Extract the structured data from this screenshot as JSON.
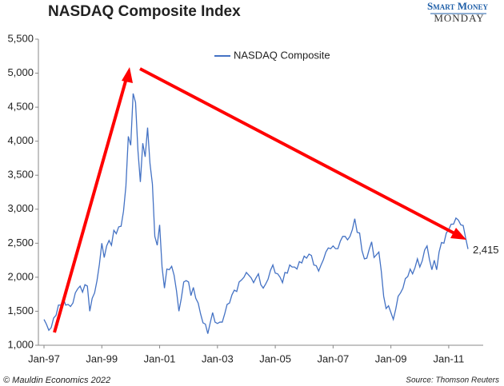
{
  "chart_data": {
    "type": "line",
    "title": "NASDAQ Composite Index",
    "brand": [
      "Smart Money",
      "MONDAY"
    ],
    "footer_left": "© Mauldin Economics 2022",
    "footer_right": "Source: Thomson Reuters",
    "annotation": "2,415",
    "categories": [
      "Jan-97",
      null,
      null,
      null,
      null,
      null,
      null,
      null,
      null,
      null,
      null,
      null,
      null,
      null,
      null,
      null,
      null,
      null,
      null,
      null,
      null,
      null,
      null,
      null,
      "Jan-99",
      null,
      null,
      null,
      null,
      null,
      null,
      null,
      null,
      null,
      null,
      null,
      null,
      null,
      null,
      null,
      null,
      null,
      null,
      null,
      null,
      null,
      null,
      null,
      "Jan-01",
      null,
      null,
      null,
      null,
      null,
      null,
      null,
      null,
      null,
      null,
      null,
      null,
      null,
      null,
      null,
      null,
      null,
      null,
      null,
      null,
      null,
      null,
      null,
      "Jan-03",
      null,
      null,
      null,
      null,
      null,
      null,
      null,
      null,
      null,
      null,
      null,
      null,
      null,
      null,
      null,
      null,
      null,
      null,
      null,
      null,
      null,
      null,
      null,
      "Jan-05",
      null,
      null,
      null,
      null,
      null,
      null,
      null,
      null,
      null,
      null,
      null,
      null,
      null,
      null,
      null,
      null,
      null,
      null,
      null,
      null,
      null,
      null,
      null,
      "Jan-07",
      null,
      null,
      null,
      null,
      null,
      null,
      null,
      null,
      null,
      null,
      null,
      null,
      null,
      null,
      null,
      null,
      null,
      null,
      null,
      null,
      null,
      null,
      null,
      "Jan-09",
      null,
      null,
      null,
      null,
      null,
      null,
      null,
      null,
      null,
      null,
      null,
      null,
      null,
      null,
      null,
      null,
      null,
      null,
      null,
      null,
      null,
      null,
      null,
      "Jan-11",
      null,
      null,
      null,
      null,
      null,
      null,
      null,
      null
    ],
    "series": [
      {
        "name": "NASDAQ Composite",
        "color": "#4472c4",
        "values": [
          1380,
          1310,
          1220,
          1260,
          1400,
          1440,
          1590,
          1590,
          1690,
          1590,
          1600,
          1570,
          1620,
          1770,
          1830,
          1870,
          1780,
          1890,
          1870,
          1500,
          1690,
          1770,
          1950,
          2190,
          2500,
          2290,
          2460,
          2540,
          2470,
          2690,
          2640,
          2740,
          2750,
          2970,
          3340,
          4070,
          3940,
          4700,
          4570,
          3860,
          3400,
          3970,
          3770,
          4200,
          3670,
          3370,
          2600,
          2470,
          2770,
          2150,
          1840,
          2120,
          2110,
          2160,
          2030,
          1800,
          1500,
          1690,
          1930,
          1950,
          1930,
          1730,
          1850,
          1690,
          1620,
          1460,
          1330,
          1310,
          1170,
          1330,
          1480,
          1340,
          1320,
          1340,
          1340,
          1460,
          1600,
          1620,
          1740,
          1810,
          1790,
          1930,
          1960,
          2000,
          2070,
          2030,
          1990,
          1920,
          1990,
          2050,
          1890,
          1840,
          1900,
          1970,
          2100,
          2180,
          2060,
          2050,
          2000,
          1920,
          2070,
          2060,
          2180,
          2150,
          2150,
          2120,
          2230,
          2210,
          2310,
          2280,
          2340,
          2320,
          2180,
          2170,
          2090,
          2180,
          2260,
          2370,
          2430,
          2420,
          2460,
          2420,
          2420,
          2530,
          2600,
          2600,
          2550,
          2600,
          2700,
          2860,
          2660,
          2650,
          2390,
          2270,
          2280,
          2410,
          2520,
          2290,
          2330,
          2370,
          2090,
          1720,
          1540,
          1580,
          1480,
          1380,
          1530,
          1720,
          1770,
          1840,
          1980,
          2010,
          2120,
          2050,
          2140,
          2270,
          2150,
          2240,
          2400,
          2460,
          2260,
          2110,
          2250,
          2110,
          2370,
          2510,
          2500,
          2650,
          2700,
          2780,
          2780,
          2870,
          2840,
          2770,
          2760,
          2580,
          2415
        ]
      }
    ],
    "ylim": [
      1000,
      5500
    ],
    "yticks": [
      {
        "value": 1000,
        "label": "1,000"
      },
      {
        "value": 1500,
        "label": "1,500"
      },
      {
        "value": 2000,
        "label": "2,000"
      },
      {
        "value": 2500,
        "label": "2,500"
      },
      {
        "value": 3000,
        "label": "3,000"
      },
      {
        "value": 3500,
        "label": "3,500"
      },
      {
        "value": 4000,
        "label": "4,000"
      },
      {
        "value": 4500,
        "label": "4,500"
      },
      {
        "value": 5000,
        "label": "5,000"
      },
      {
        "value": 5500,
        "label": "5,500"
      }
    ],
    "grid": false
  }
}
